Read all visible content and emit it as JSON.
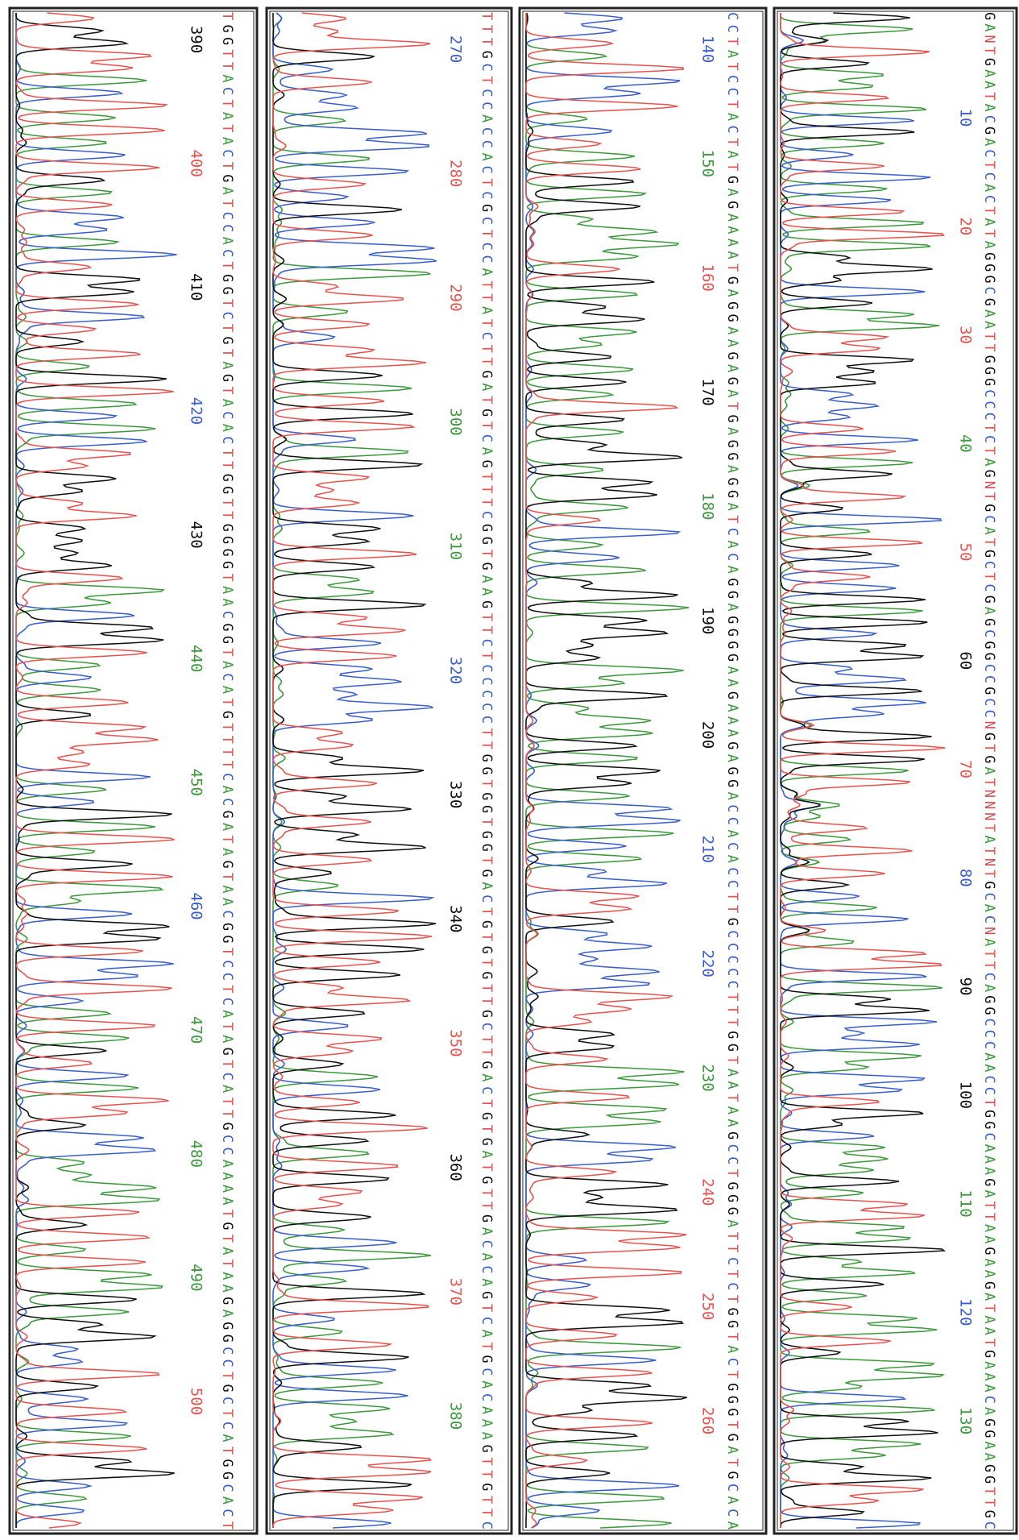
{
  "panels": [
    {
      "sequence": "GANTGAATACGACTCACTATAGGGCGAATTGGGCCCTCTAGNTGCATGCTCGAGCGGCCGCCNGTGATNNNTATNTGCACNATTCAGGCCCAACCTGGCAAAGATTAAGAAGATAATGAAACAGGAAGGTTGC",
      "positions": [
        10,
        20,
        30,
        40,
        50,
        60,
        70,
        80,
        90,
        100,
        110,
        120,
        130
      ],
      "position_colors": [
        "#3a5fcd",
        "#e8534f",
        "#e8534f",
        "#3c9a3c",
        "#e8534f",
        "#111111",
        "#e8534f",
        "#3a5fcd",
        "#111111",
        "#111111",
        "#3c9a3c",
        "#3a5fcd",
        "#3c9a3c"
      ]
    },
    {
      "sequence": "CCTATCCTACTATGAGAAAATGAGGAAGAGATGAGGAGGATCACAGGAGGGGAAGAAAGAGGACCACACCTTGCCCCCTTTGGTAATAAGCCTGGGATTCTCTGGTACTGGGTGATGCACA",
      "positions": [
        140,
        150,
        160,
        170,
        180,
        190,
        200,
        210,
        220,
        230,
        240,
        250,
        260
      ],
      "position_colors": [
        "#3a5fcd",
        "#3c9a3c",
        "#e8534f",
        "#111111",
        "#3c9a3c",
        "#111111",
        "#111111",
        "#3a5fcd",
        "#3a5fcd",
        "#3c9a3c",
        "#e8534f",
        "#e8534f",
        "#e8534f"
      ]
    },
    {
      "sequence": "TTTGCTCCACCACTCGCTCCATTATCTTGATGTCAGTTTCGGTGAAGTTCTCCCCCTTGGTGGTGGTGACTGTGTGTTGCTTGACTGTGATGTTGACACAGTCATGCACAAAGTTGTTC",
      "positions": [
        270,
        280,
        290,
        300,
        310,
        320,
        330,
        340,
        350,
        360,
        370,
        380
      ],
      "position_colors": [
        "#3a5fcd",
        "#e8534f",
        "#e8534f",
        "#3c9a3c",
        "#3c9a3c",
        "#3a5fcd",
        "#111111",
        "#111111",
        "#e8534f",
        "#111111",
        "#e8534f",
        "#3c9a3c"
      ]
    },
    {
      "sequence": "TGGTTACTATACTGATCCACTGGTCTGTAGTACACTTGGTTGGGGTAACGGTACATGTTTTCACGATAGTAACGGTCCTCATAGTCATTGCCAAAATGTATAAGAGGCCTGCTCATGGCACT",
      "positions": [
        390,
        400,
        410,
        420,
        430,
        440,
        450,
        460,
        470,
        480,
        490,
        500
      ],
      "position_colors": [
        "#111111",
        "#e8534f",
        "#111111",
        "#3a5fcd",
        "#111111",
        "#3c9a3c",
        "#3c9a3c",
        "#3a5fcd",
        "#3c9a3c",
        "#3c9a3c",
        "#3c9a3c",
        "#e8534f"
      ]
    }
  ],
  "base_colors": {
    "A": "#3c9a3c",
    "C": "#3a5fcd",
    "G": "#111111",
    "T": "#e8534f",
    "N": "#d05050"
  }
}
